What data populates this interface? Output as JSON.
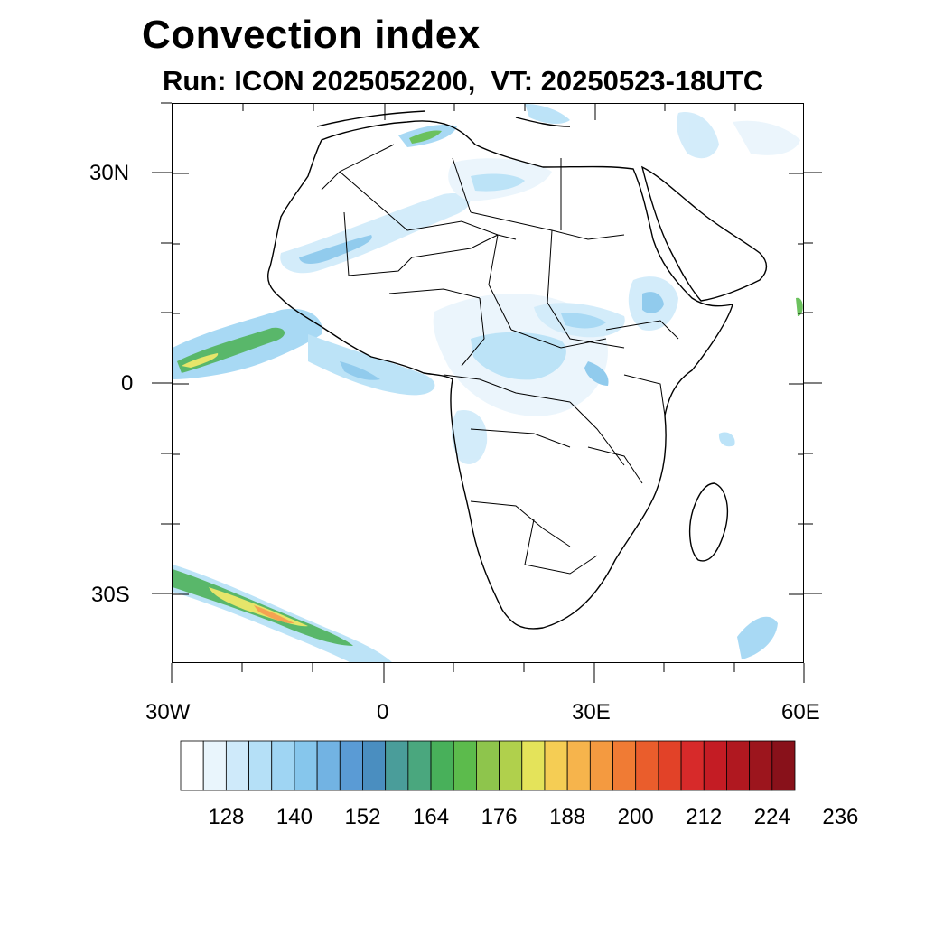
{
  "title": "Convection index",
  "subtitle": "Run: ICON 2025052200,  VT: 20250523-18UTC",
  "axes": {
    "y_ticks": [
      "30N",
      "0",
      "30S"
    ],
    "x_ticks": [
      "30W",
      "0",
      "30E",
      "60E"
    ]
  },
  "colorbar": {
    "labels": [
      "128",
      "140",
      "152",
      "164",
      "176",
      "188",
      "200",
      "212",
      "224",
      "236"
    ],
    "colors": [
      "#ffffff",
      "#e9f5fc",
      "#cfeafa",
      "#b5e0f7",
      "#9fd5f3",
      "#86c6ec",
      "#72b3e3",
      "#5a9bd5",
      "#4a8ec0",
      "#4a9d9a",
      "#4aa77e",
      "#48b05a",
      "#5cbb4c",
      "#8ec54c",
      "#b0d04c",
      "#e4e35a",
      "#f5cd54",
      "#f6b44c",
      "#f49a40",
      "#f07b34",
      "#ea5d2c",
      "#e24228",
      "#d72a2a",
      "#c41c24",
      "#b01820",
      "#9c151d",
      "#88111a"
    ]
  }
}
